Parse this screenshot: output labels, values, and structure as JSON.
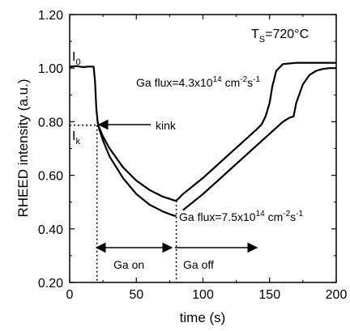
{
  "chart_data": {
    "type": "line",
    "xlabel": "time (s)",
    "ylabel": "RHEED intensity (a.u.)",
    "xlim": [
      0,
      200
    ],
    "ylim": [
      0.2,
      1.2
    ],
    "xticks": [
      0,
      50,
      100,
      150,
      200
    ],
    "xtick_labels": [
      "0",
      "50",
      "100",
      "150",
      "200"
    ],
    "yticks": [
      0.2,
      0.4,
      0.6,
      0.8,
      1.0,
      1.2
    ],
    "ytick_labels": [
      "0.20",
      "0.40",
      "0.60",
      "0.80",
      "1.00",
      "1.20"
    ],
    "grid": false,
    "series": [
      {
        "x": [
          0,
          5,
          10,
          15,
          18,
          19,
          20,
          21,
          22,
          25,
          30,
          40,
          50,
          60,
          70,
          75,
          78,
          80
        ],
        "y": [
          1.005,
          1.008,
          1.004,
          1.006,
          1.005,
          0.95,
          0.85,
          0.8,
          0.78,
          0.745,
          0.7,
          0.63,
          0.58,
          0.545,
          0.52,
          0.512,
          0.507,
          0.505
        ]
      },
      {
        "x": [
          80,
          85,
          90,
          100,
          110,
          120,
          130,
          140,
          144,
          147,
          150,
          152,
          155,
          160,
          170,
          200
        ],
        "y": [
          0.505,
          0.53,
          0.55,
          0.59,
          0.635,
          0.68,
          0.725,
          0.77,
          0.79,
          0.82,
          0.87,
          0.93,
          0.99,
          1.015,
          1.02,
          1.02
        ]
      },
      {
        "x": [
          21,
          22,
          25,
          30,
          40,
          50,
          60,
          70,
          75,
          78,
          80
        ],
        "y": [
          0.8,
          0.775,
          0.73,
          0.67,
          0.59,
          0.53,
          0.49,
          0.465,
          0.455,
          0.45,
          0.448
        ]
      },
      {
        "x": [
          85,
          90,
          100,
          110,
          120,
          130,
          140,
          150,
          160,
          165,
          168,
          170,
          175,
          180,
          185,
          190,
          195,
          200
        ],
        "y": [
          0.47,
          0.49,
          0.53,
          0.575,
          0.62,
          0.665,
          0.71,
          0.755,
          0.8,
          0.815,
          0.82,
          0.87,
          0.94,
          0.975,
          0.99,
          0.997,
          1.0,
          1.0
        ]
      }
    ],
    "annotations": {
      "temperature": {
        "T": "T",
        "sub": "S",
        "value": "=720°C"
      },
      "i0": {
        "base": "I",
        "sub": "0"
      },
      "ik": {
        "base": "I",
        "sub": "k"
      },
      "kink": "kink",
      "flux_low": {
        "prefix": "Ga flux=4.3x10",
        "exp": "14",
        "unit": " cm",
        "unit_exp": "-2",
        "tail": "s",
        "tail_exp": "-1"
      },
      "flux_high": {
        "prefix": "Ga flux=7.5x10",
        "exp": "14",
        "unit": " cm",
        "unit_exp": "-2",
        "tail": "s",
        "tail_exp": "-1"
      },
      "ga_on": "Ga on",
      "ga_off": "Ga off"
    }
  }
}
